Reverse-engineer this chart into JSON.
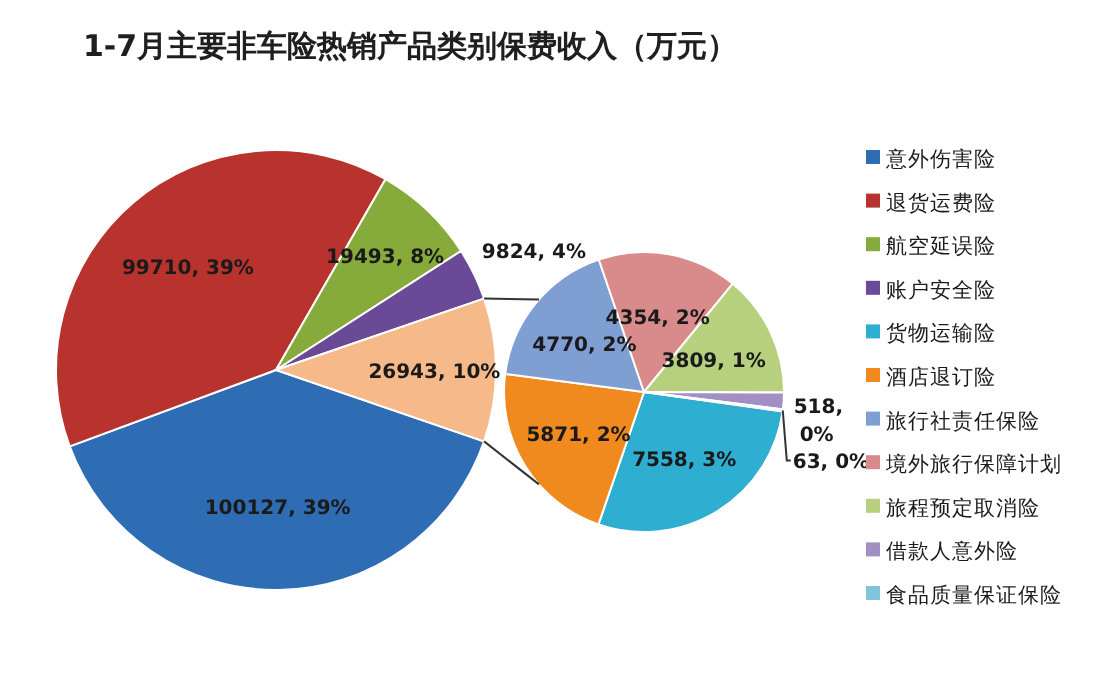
{
  "chart_data": [
    {
      "type": "pie",
      "title": "1-7月主要非车险热销产品类别保费收入（万元）",
      "legend": "right",
      "categories": [
        "意外伤害险",
        "退货运费险",
        "航空延误险",
        "账户安全险",
        null
      ],
      "values": [
        100127,
        99710,
        19493,
        9824,
        26943
      ],
      "colors": [
        "#2e6db4",
        "#b8322e",
        "#86ab3a",
        "#6a4a96",
        "#f6b98a"
      ],
      "value_labels": [
        "100127, 39%",
        "99710, 39%",
        "19493, 8%",
        "9824, 4%",
        "26943, 10%"
      ]
    },
    {
      "type": "pie",
      "legend": "right",
      "categories": [
        "货物运输险",
        "酒店退订险",
        "旅行社责任保险",
        "境外旅行保障计划",
        "旅程预定取消险",
        "借款人意外险",
        "食品质量保证保险"
      ],
      "values": [
        7558,
        5871,
        4770,
        4354,
        3809,
        518,
        63
      ],
      "colors": [
        "#2eaed0",
        "#f08a1e",
        "#7f9ed2",
        "#d98a8a",
        "#b6d07e",
        "#a290c4",
        "#7fc4d8"
      ],
      "value_labels": [
        "7558, 3%",
        "5871, 2%",
        "4770, 2%",
        "4354, 2%",
        "3809, 1%",
        "518, 0%",
        "63, 0%"
      ]
    }
  ]
}
